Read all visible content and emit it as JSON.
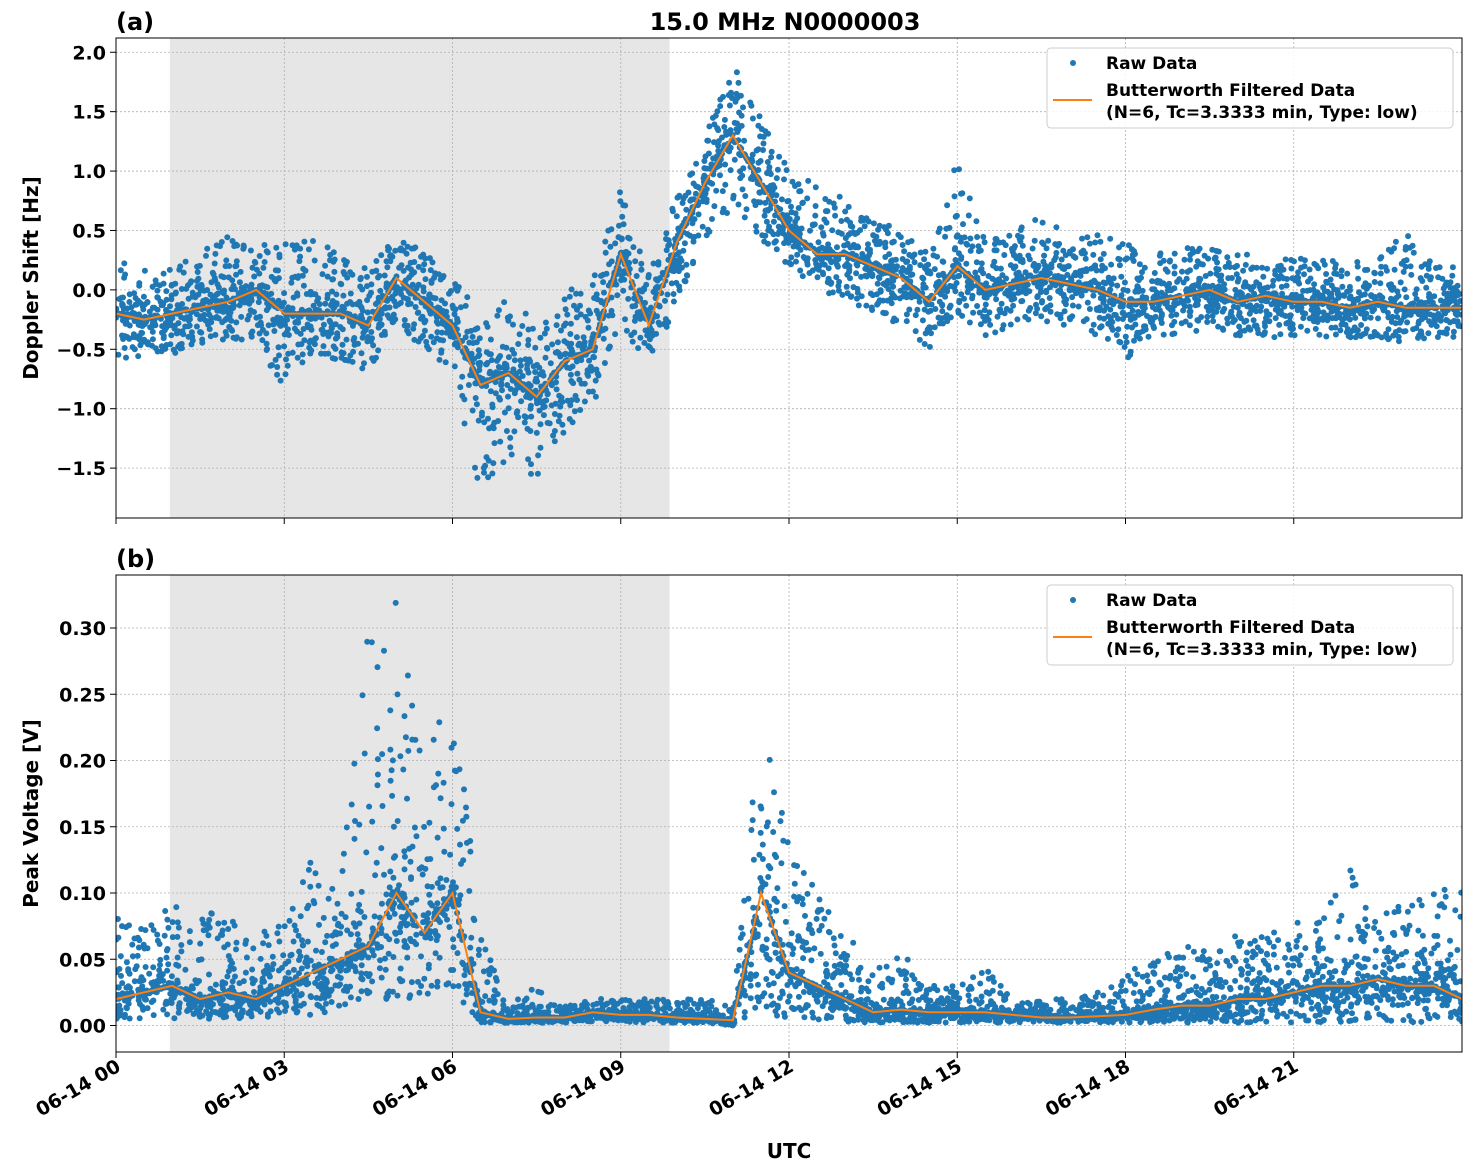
{
  "title": "15.0 MHz N0000003",
  "xlabel": "UTC",
  "x_ticks": [
    "06-14 00",
    "06-14 03",
    "06-14 06",
    "06-14 09",
    "06-14 12",
    "06-14 15",
    "06-14 18",
    "06-14 21"
  ],
  "x_tick_hours": [
    0,
    3,
    6,
    9,
    12,
    15,
    18,
    21
  ],
  "colors": {
    "raw": "#1f77b4",
    "filtered": "#ff7f0e",
    "shade": "#e6e6e6"
  },
  "chart_data": [
    {
      "type": "scatter",
      "panel_label": "(a)",
      "ylabel": "Doppler Shift [Hz]",
      "xlim_hours": [
        0,
        24
      ],
      "ylim": [
        -1.92,
        2.12
      ],
      "y_ticks": [
        -1.5,
        -1.0,
        -0.5,
        0.0,
        0.5,
        1.0,
        1.5,
        2.0
      ],
      "y_tick_labels": [
        "−1.5",
        "−1.0",
        "−0.5",
        "0.0",
        "0.5",
        "1.0",
        "1.5",
        "2.0"
      ],
      "grid": true,
      "legend": {
        "position": "top-right",
        "entries": [
          "Raw Data",
          "Butterworth Filtered Data",
          "(N=6, Tc=3.3333 min, Type: low)"
        ]
      },
      "shaded_hours": [
        0.96,
        9.87
      ],
      "time_hours": [
        0,
        0.5,
        1,
        1.5,
        2,
        2.5,
        3,
        3.5,
        4,
        4.5,
        5,
        5.5,
        6,
        6.5,
        7,
        7.5,
        8,
        8.5,
        9,
        9.5,
        10,
        10.5,
        11,
        11.5,
        12,
        12.5,
        13,
        13.5,
        14,
        14.5,
        15,
        15.5,
        16,
        16.5,
        17,
        17.5,
        18,
        18.5,
        19,
        19.5,
        20,
        20.5,
        21,
        21.5,
        22,
        22.5,
        23,
        23.5,
        24
      ],
      "series": [
        {
          "name": "Butterworth Filtered Data",
          "values": [
            -0.2,
            -0.25,
            -0.2,
            -0.15,
            -0.1,
            0.0,
            -0.2,
            -0.2,
            -0.2,
            -0.3,
            0.1,
            -0.1,
            -0.3,
            -0.8,
            -0.7,
            -0.9,
            -0.6,
            -0.5,
            0.3,
            -0.3,
            0.4,
            0.9,
            1.3,
            0.9,
            0.5,
            0.3,
            0.3,
            0.2,
            0.1,
            -0.1,
            0.2,
            0.0,
            0.05,
            0.1,
            0.05,
            0.0,
            -0.1,
            -0.1,
            -0.05,
            0.0,
            -0.1,
            -0.05,
            -0.1,
            -0.1,
            -0.15,
            -0.1,
            -0.15,
            -0.15,
            -0.15
          ]
        },
        {
          "name": "Raw Data",
          "low": [
            -0.6,
            -0.55,
            -0.6,
            -0.5,
            -0.45,
            -0.4,
            -0.9,
            -0.55,
            -0.6,
            -0.7,
            -0.3,
            -0.5,
            -0.7,
            -1.7,
            -1.4,
            -1.6,
            -1.2,
            -1.0,
            -0.3,
            -0.7,
            -0.1,
            0.4,
            0.7,
            0.4,
            0.1,
            0.0,
            -0.1,
            -0.2,
            -0.3,
            -0.5,
            -0.2,
            -0.4,
            -0.3,
            -0.3,
            -0.3,
            -0.4,
            -0.6,
            -0.4,
            -0.4,
            -0.3,
            -0.4,
            -0.4,
            -0.4,
            -0.4,
            -0.4,
            -0.4,
            -0.45,
            -0.4,
            -0.4
          ],
          "high": [
            0.3,
            0.2,
            0.2,
            0.3,
            0.5,
            0.45,
            0.4,
            0.45,
            0.3,
            0.2,
            0.45,
            0.35,
            0.1,
            -0.2,
            0.0,
            -0.3,
            0.0,
            0.1,
            0.9,
            0.2,
            0.8,
            1.3,
            1.9,
            1.5,
            1.0,
            0.9,
            0.8,
            0.6,
            0.5,
            0.3,
            1.1,
            0.4,
            0.5,
            0.7,
            0.4,
            0.5,
            0.4,
            0.3,
            0.35,
            0.4,
            0.3,
            0.35,
            0.3,
            0.3,
            0.3,
            0.25,
            0.5,
            0.2,
            0.2
          ]
        }
      ]
    },
    {
      "type": "scatter",
      "panel_label": "(b)",
      "ylabel": "Peak Voltage [V]",
      "xlim_hours": [
        0,
        24
      ],
      "ylim": [
        -0.02,
        0.34
      ],
      "y_ticks": [
        0.0,
        0.05,
        0.1,
        0.15,
        0.2,
        0.25,
        0.3
      ],
      "y_tick_labels": [
        "0.00",
        "0.05",
        "0.10",
        "0.15",
        "0.20",
        "0.25",
        "0.30"
      ],
      "grid": true,
      "legend": {
        "position": "top-right",
        "entries": [
          "Raw Data",
          "Butterworth Filtered Data",
          "(N=6, Tc=3.3333 min, Type: low)"
        ]
      },
      "shaded_hours": [
        0.96,
        9.87
      ],
      "time_hours": [
        0,
        0.5,
        1,
        1.5,
        2,
        2.5,
        3,
        3.5,
        4,
        4.5,
        5,
        5.5,
        6,
        6.5,
        7,
        7.5,
        8,
        8.5,
        9,
        9.5,
        10,
        10.5,
        11,
        11.5,
        12,
        12.5,
        13,
        13.5,
        14,
        14.5,
        15,
        15.5,
        16,
        16.5,
        17,
        17.5,
        18,
        18.5,
        19,
        19.5,
        20,
        20.5,
        21,
        21.5,
        22,
        22.5,
        23,
        23.5,
        24
      ],
      "series": [
        {
          "name": "Butterworth Filtered Data",
          "values": [
            0.02,
            0.025,
            0.03,
            0.02,
            0.025,
            0.02,
            0.03,
            0.04,
            0.05,
            0.06,
            0.1,
            0.07,
            0.1,
            0.01,
            0.005,
            0.006,
            0.006,
            0.01,
            0.008,
            0.008,
            0.006,
            0.005,
            0.004,
            0.1,
            0.04,
            0.03,
            0.02,
            0.01,
            0.012,
            0.01,
            0.01,
            0.01,
            0.008,
            0.006,
            0.006,
            0.007,
            0.008,
            0.012,
            0.015,
            0.015,
            0.02,
            0.02,
            0.025,
            0.03,
            0.03,
            0.035,
            0.03,
            0.03,
            0.02
          ]
        },
        {
          "name": "Raw Data",
          "low": [
            0.005,
            0.005,
            0.005,
            0.005,
            0.005,
            0.005,
            0.005,
            0.008,
            0.01,
            0.02,
            0.02,
            0.02,
            0.02,
            0.002,
            0.002,
            0.002,
            0.002,
            0.003,
            0.003,
            0.002,
            0.002,
            0.002,
            0.0,
            0.01,
            0.005,
            0.004,
            0.003,
            0.002,
            0.002,
            0.002,
            0.002,
            0.002,
            0.002,
            0.002,
            0.002,
            0.002,
            0.002,
            0.002,
            0.002,
            0.002,
            0.002,
            0.002,
            0.002,
            0.002,
            0.002,
            0.002,
            0.002,
            0.002,
            0.002
          ],
          "high": [
            0.09,
            0.08,
            0.09,
            0.1,
            0.08,
            0.07,
            0.08,
            0.15,
            0.12,
            0.3,
            0.32,
            0.2,
            0.27,
            0.07,
            0.015,
            0.03,
            0.015,
            0.02,
            0.02,
            0.02,
            0.02,
            0.02,
            0.015,
            0.25,
            0.14,
            0.1,
            0.07,
            0.05,
            0.06,
            0.03,
            0.03,
            0.045,
            0.02,
            0.02,
            0.02,
            0.025,
            0.04,
            0.05,
            0.06,
            0.06,
            0.07,
            0.07,
            0.08,
            0.08,
            0.12,
            0.09,
            0.09,
            0.1,
            0.12
          ]
        }
      ]
    }
  ]
}
